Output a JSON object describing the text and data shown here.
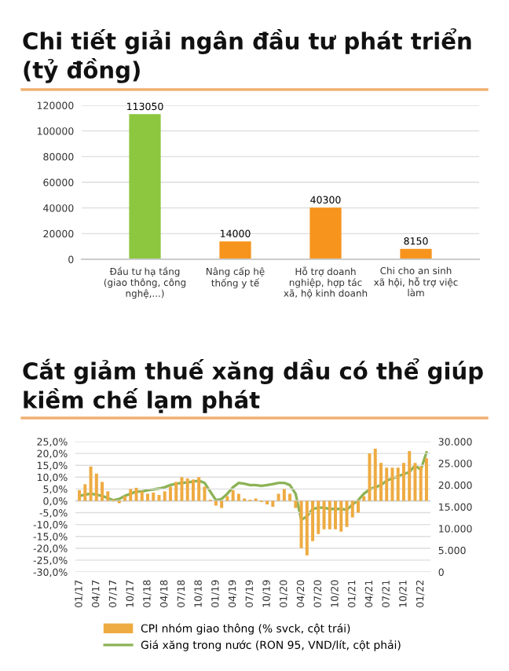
{
  "chart_data": [
    {
      "type": "bar",
      "title": "Chi tiết giải ngân đầu tư phát triển (tỷ đồng)",
      "categories": [
        "Đầu tư hạ tầng\n(giao thông, công\nnghệ,...)",
        "Nâng cấp hệ\nthống y tế",
        "Hỗ trợ doanh\nnghiệp, hợp tác\nxã, hộ kinh doanh",
        "Chi cho an sinh\nxã hội, hỗ trợ việc\nlàm"
      ],
      "values": [
        113050,
        14000,
        40300,
        8150
      ],
      "colors": [
        "#8dc63f",
        "#f7941d",
        "#f7941d",
        "#f7941d"
      ],
      "ylim": [
        0,
        120000
      ],
      "yticks": [
        0,
        20000,
        40000,
        60000,
        80000,
        100000,
        120000
      ],
      "grid": "y",
      "data_labels": true
    },
    {
      "type": "bar",
      "title": "Cắt giảm thuế xăng dầu có thể giúp kiềm chế lạm phát",
      "categories": [
        "01/17",
        null,
        null,
        "04/17",
        null,
        null,
        "07/17",
        null,
        null,
        "10/17",
        null,
        null,
        "01/18",
        null,
        null,
        "04/18",
        null,
        null,
        "07/18",
        null,
        null,
        "10/18",
        null,
        null,
        "01/19",
        null,
        null,
        "04/19",
        null,
        null,
        "07/19",
        null,
        null,
        "10/19",
        null,
        null,
        "01/20",
        null,
        null,
        "04/20",
        null,
        null,
        "07/20",
        null,
        null,
        "10/20",
        null,
        null,
        "01/21",
        null,
        null,
        "04/21",
        null,
        null,
        "07/21",
        null,
        null,
        "10/21",
        null,
        null,
        "01/22",
        null
      ],
      "series": [
        {
          "name": "CPI nhóm giao thông (% svck, cột trái)",
          "type": "bar",
          "axis": "y",
          "color": "#eeab42",
          "values": [
            4.5,
            7,
            14.5,
            11.5,
            8,
            4,
            0.5,
            -1,
            2,
            5,
            5.5,
            4,
            3,
            3.5,
            2.5,
            4,
            6,
            8,
            10,
            9.5,
            9,
            10,
            6,
            0.5,
            -2,
            -3,
            2,
            4.5,
            3,
            1,
            0.5,
            1,
            -0.5,
            -1.5,
            -2.5,
            3,
            5,
            3,
            -3,
            -20,
            -23,
            -17,
            -14,
            -12,
            -12,
            -12,
            -13,
            -11,
            -7,
            -5,
            2,
            20,
            22,
            16,
            14,
            14,
            14,
            16,
            21,
            16,
            14.5,
            18
          ]
        },
        {
          "name": "Giá xăng trong nước (RON 95, VND/lít, cột phải)",
          "type": "line",
          "axis": "y2",
          "color": "#8cb356",
          "values": [
            17500,
            17800,
            18000,
            17800,
            17500,
            17000,
            16500,
            16800,
            17500,
            18000,
            18500,
            18500,
            18800,
            19000,
            19200,
            19500,
            20000,
            20300,
            20500,
            20600,
            20800,
            21000,
            20500,
            18500,
            16500,
            16800,
            18000,
            19500,
            20500,
            20300,
            20000,
            20000,
            19800,
            20000,
            20200,
            20500,
            20500,
            20000,
            18000,
            12000,
            12800,
            14500,
            14800,
            14800,
            14500,
            14500,
            14500,
            14300,
            15500,
            16500,
            18000,
            19000,
            19500,
            20000,
            21000,
            21500,
            22000,
            22500,
            23000,
            24500,
            23500,
            27500
          ]
        }
      ],
      "ylim": [
        -30,
        25
      ],
      "yticks": [
        {
          "value": -30,
          "label": "-30,0%"
        },
        {
          "value": -25,
          "label": "-25,0%"
        },
        {
          "value": -20,
          "label": "-20,0%"
        },
        {
          "value": -15,
          "label": "-15,0%"
        },
        {
          "value": -10,
          "label": "-10,0%"
        },
        {
          "value": -5,
          "label": "-5,0%"
        },
        {
          "value": 0,
          "label": "0,0%"
        },
        {
          "value": 5,
          "label": "5,0%"
        },
        {
          "value": 10,
          "label": "10,0%"
        },
        {
          "value": 15,
          "label": "15,0%"
        },
        {
          "value": 20,
          "label": "20,0%"
        },
        {
          "value": 25,
          "label": "25,0%"
        }
      ],
      "y2lim": [
        0,
        30000
      ],
      "y2ticks": [
        0,
        {
          "value": 5000,
          "label": "5.000"
        },
        {
          "value": 10000,
          "label": "10.000"
        },
        {
          "value": 15000,
          "label": "15.000"
        },
        {
          "value": 20000,
          "label": "20.000"
        },
        {
          "value": 25000,
          "label": "25.000"
        },
        {
          "value": 30000,
          "label": "30.000"
        }
      ],
      "grid": "y",
      "legend": "bottom"
    }
  ]
}
